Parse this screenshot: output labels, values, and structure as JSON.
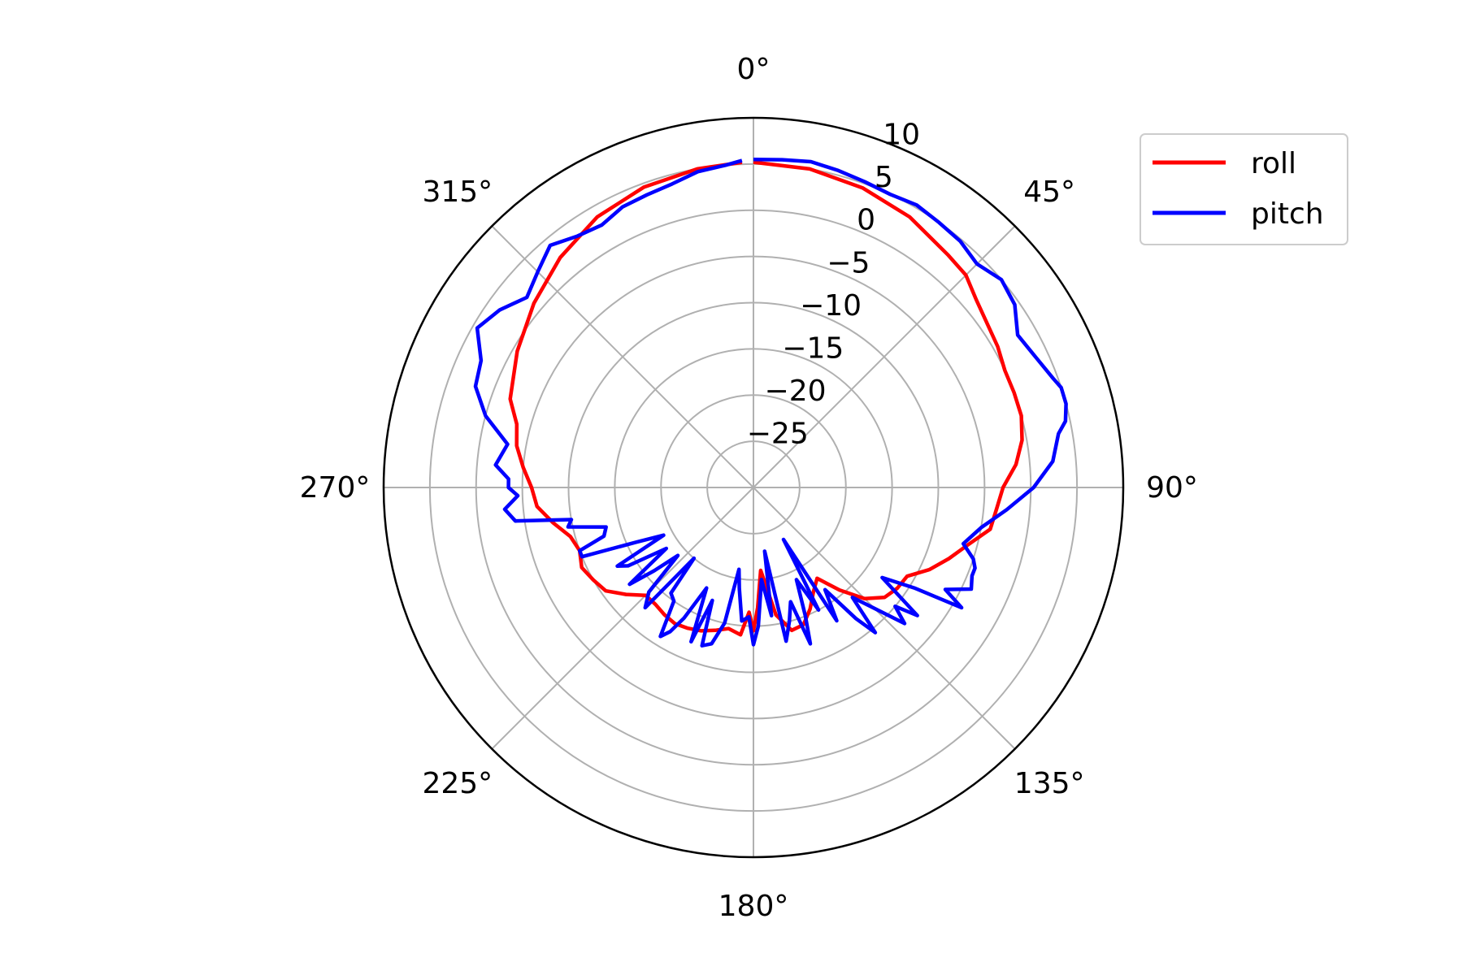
{
  "chart_data": {
    "type": "polar-line",
    "title": "",
    "theta_zero": "N",
    "theta_direction": "clockwise",
    "theta_ticks": [
      0,
      45,
      90,
      135,
      180,
      225,
      270,
      315
    ],
    "theta_tick_labels": [
      "0°",
      "45°",
      "90°",
      "135°",
      "180°",
      "225°",
      "270°",
      "315°"
    ],
    "r_range": [
      -30,
      10
    ],
    "r_ticks": [
      -25,
      -20,
      -15,
      -10,
      -5,
      0,
      5,
      10
    ],
    "r_tick_labels": [
      "−25",
      "−20",
      "−15",
      "−10",
      "−5",
      "0",
      "5",
      "10"
    ],
    "r_label_angle_deg": 22.5,
    "grid": true,
    "legend_position": "upper-right",
    "series": [
      {
        "name": "roll",
        "color": "#ff0000",
        "theta": [
          0,
          10,
          20,
          30,
          40,
          45,
          50,
          60,
          65,
          70,
          75,
          80,
          85,
          90,
          95,
          100,
          105,
          110,
          115,
          120,
          125,
          130,
          135,
          140,
          145,
          150,
          155,
          160,
          165,
          170,
          175,
          178,
          180,
          182,
          185,
          190,
          195,
          200,
          205,
          210,
          215,
          220,
          225,
          230,
          235,
          240,
          245,
          250,
          255,
          260,
          265,
          270,
          275,
          280,
          285,
          290,
          300,
          310,
          320,
          330,
          340,
          350,
          358
        ],
        "r": [
          5.2,
          5.0,
          4.5,
          3.8,
          2.8,
          2.5,
          1.5,
          0.5,
          0.0,
          0.0,
          0.0,
          -0.5,
          -1.5,
          -3.0,
          -3.6,
          -4.0,
          -6.0,
          -7.5,
          -9.0,
          -10.8,
          -11.0,
          -11.5,
          -13.0,
          -15.5,
          -18.0,
          -17.0,
          -15.5,
          -14.2,
          -14.0,
          -16.0,
          -21.0,
          -17.0,
          -14.5,
          -16.5,
          -14.0,
          -14.5,
          -14.0,
          -13.5,
          -13.2,
          -13.0,
          -13.2,
          -13.5,
          -13.5,
          -12.0,
          -10.5,
          -10.0,
          -9.5,
          -10.0,
          -9.5,
          -8.0,
          -6.5,
          -6.0,
          -5.0,
          -4.0,
          -3.5,
          -2.0,
          -0.5,
          1.0,
          2.5,
          3.8,
          4.6,
          5.0,
          5.2
        ]
      },
      {
        "name": "pitch",
        "color": "#0000ff",
        "theta": [
          0,
          5,
          10,
          15,
          20,
          25,
          30,
          35,
          40,
          45,
          50,
          55,
          60,
          65,
          70,
          72,
          75,
          78,
          80,
          85,
          90,
          95,
          100,
          105,
          108,
          110,
          112,
          115,
          118,
          120,
          122,
          125,
          128,
          130,
          132,
          135,
          138,
          140,
          142,
          145,
          148,
          150,
          152,
          155,
          158,
          160,
          162,
          165,
          168,
          170,
          172,
          175,
          178,
          180,
          182,
          185,
          188,
          190,
          192,
          195,
          198,
          200,
          202,
          205,
          208,
          210,
          212,
          215,
          218,
          220,
          222,
          225,
          228,
          230,
          232,
          235,
          238,
          240,
          242,
          245,
          248,
          250,
          252,
          255,
          258,
          260,
          262,
          265,
          268,
          270,
          272,
          275,
          280,
          285,
          290,
          295,
          300,
          305,
          310,
          315,
          320,
          325,
          330,
          335,
          340,
          345,
          350,
          355,
          358
        ],
        "r": [
          5.5,
          5.6,
          5.8,
          5.5,
          5.2,
          5.0,
          5.3,
          5.0,
          4.8,
          4.2,
          5.0,
          4.5,
          3.0,
          3.6,
          4.5,
          5.0,
          5.0,
          4.5,
          3.5,
          2.5,
          0.3,
          -2.5,
          -5.0,
          -6.5,
          -5.0,
          -4.5,
          -4.5,
          -4.0,
          -6.5,
          -4.0,
          -9.5,
          -13.0,
          -7.5,
          -10.0,
          -8.0,
          -11.5,
          -14.0,
          -9.5,
          -12.0,
          -16.5,
          -13.0,
          -23.5,
          -15.0,
          -19.0,
          -15.0,
          -12.0,
          -17.0,
          -15.0,
          -13.0,
          -23.0,
          -16.0,
          -20.0,
          -15.0,
          -13.0,
          -16.0,
          -15.5,
          -19.0,
          -21.0,
          -15.0,
          -12.5,
          -12.0,
          -17.0,
          -12.0,
          -18.0,
          -14.0,
          -12.0,
          -11.0,
          -15.0,
          -15.5,
          -20.0,
          -12.5,
          -14.0,
          -19.0,
          -16.0,
          -13.0,
          -18.5,
          -14.0,
          -13.0,
          -19.0,
          -16.0,
          -10.0,
          -10.0,
          -13.0,
          -13.5,
          -9.5,
          -10.0,
          -4.0,
          -3.0,
          -4.5,
          -3.5,
          -3.5,
          -2.0,
          -3.0,
          0.0,
          2.0,
          2.5,
          4.5,
          3.5,
          2.0,
          3.0,
          4.2,
          3.2,
          2.8,
          3.5,
          3.7,
          4.0,
          4.7,
          5.0,
          5.4
        ]
      }
    ]
  }
}
